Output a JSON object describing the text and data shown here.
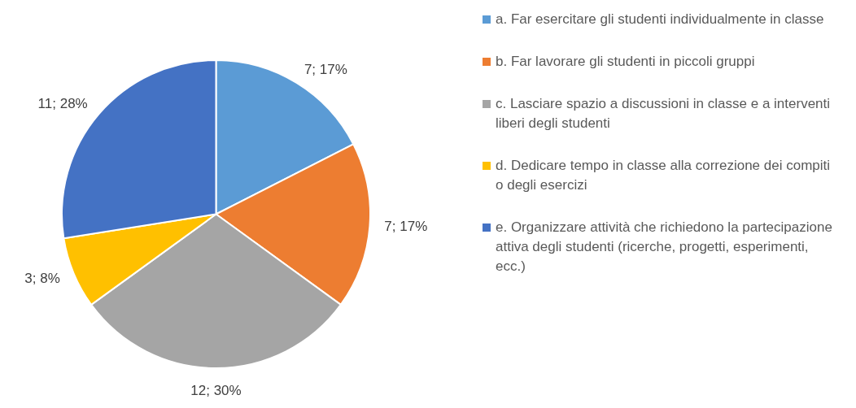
{
  "chart_data": {
    "type": "pie",
    "categories": [
      "a. Far esercitare gli studenti individualmente in classe",
      "b. Far lavorare gli studenti in piccoli gruppi",
      "c. Lasciare spazio a discussioni in classe e a interventi liberi degli studenti",
      "d. Dedicare tempo in classe alla correzione dei compiti o degli esercizi",
      "e. Organizzare attività che richiedono la partecipazione attiva degli studenti (ricerche, progetti, esperimenti, ecc.)"
    ],
    "values": [
      7,
      7,
      12,
      3,
      11
    ],
    "colors": [
      "#5b9bd5",
      "#ed7d31",
      "#a5a5a5",
      "#ffc000",
      "#4472c4"
    ],
    "value_labels": [
      "7; 17%",
      "7; 17%",
      "12; 30%",
      "3; 8%",
      "11; 28%"
    ],
    "legend": "right"
  }
}
